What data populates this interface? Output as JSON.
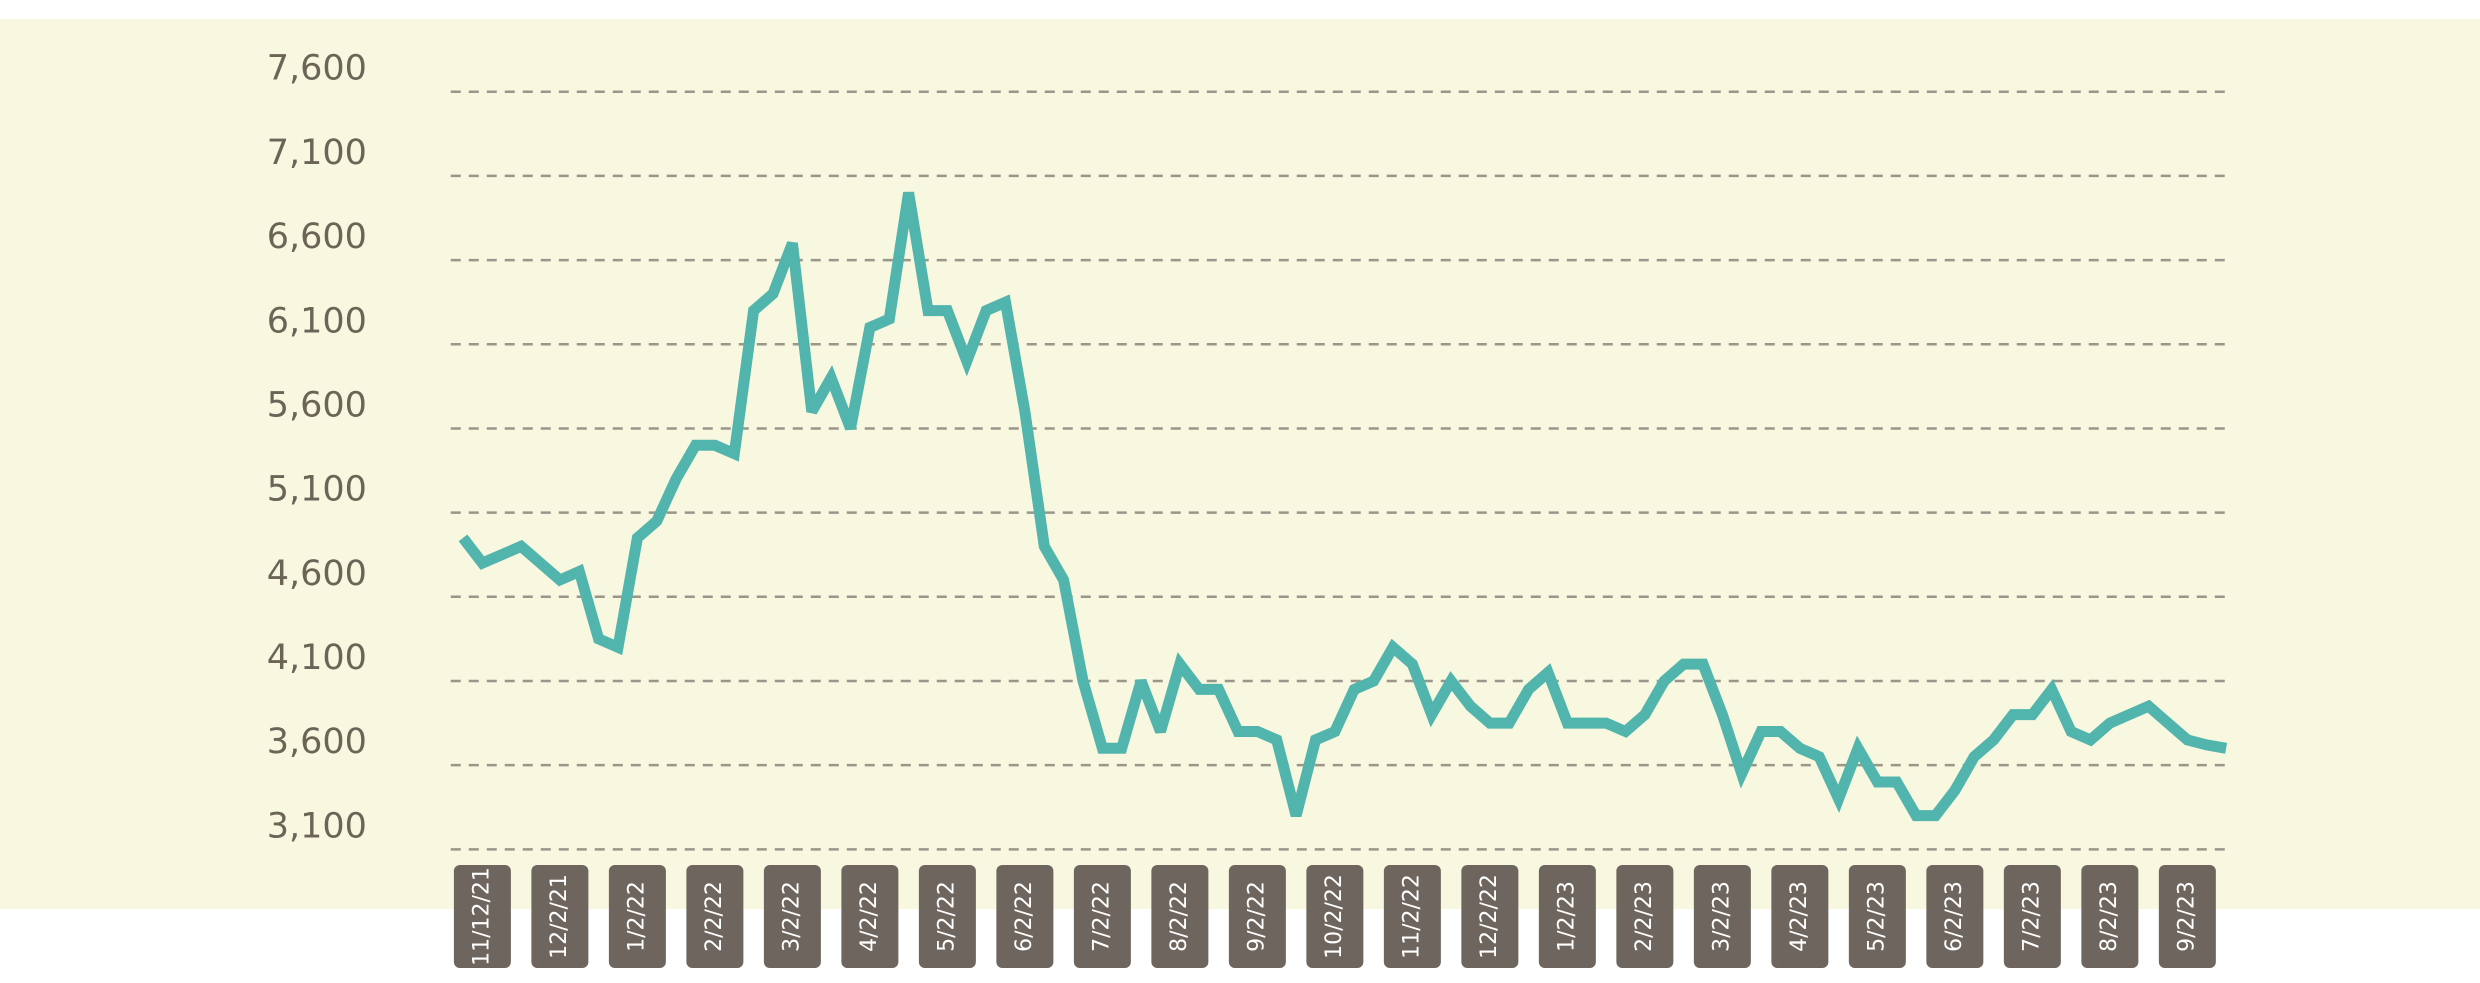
{
  "chart_data": {
    "type": "line",
    "ylim": [
      3100,
      7600
    ],
    "yticks": [
      {
        "value": 3100,
        "label": "3,100"
      },
      {
        "value": 3600,
        "label": "3,600"
      },
      {
        "value": 4100,
        "label": "4,100"
      },
      {
        "value": 4600,
        "label": "4,600"
      },
      {
        "value": 5100,
        "label": "5,100"
      },
      {
        "value": 5600,
        "label": "5,600"
      },
      {
        "value": 6100,
        "label": "6,100"
      },
      {
        "value": 6600,
        "label": "6,600"
      },
      {
        "value": 7100,
        "label": "7,100"
      },
      {
        "value": 7600,
        "label": "7,600"
      }
    ],
    "grid": true,
    "categories": [
      null,
      "11/12/21",
      null,
      null,
      null,
      "12/2/21",
      null,
      null,
      null,
      "1/2/22",
      null,
      null,
      null,
      "2/2/22",
      null,
      null,
      null,
      "3/2/22",
      null,
      null,
      null,
      "4/2/22",
      null,
      null,
      null,
      "5/2/22",
      null,
      null,
      null,
      "6/2/22",
      null,
      null,
      null,
      "7/2/22",
      null,
      null,
      null,
      "8/2/22",
      null,
      null,
      null,
      "9/2/22",
      null,
      null,
      null,
      "10/2/22",
      null,
      null,
      null,
      "11/2/22",
      null,
      null,
      null,
      "12/2/22",
      null,
      null,
      null,
      "1/2/23",
      null,
      null,
      null,
      "2/2/23",
      null,
      null,
      null,
      "3/2/23",
      null,
      null,
      null,
      "4/2/23",
      null,
      null,
      null,
      "5/2/23",
      null,
      null,
      null,
      "6/2/23",
      null,
      null,
      null,
      "7/2/23",
      null,
      null,
      null,
      "8/2/23",
      null,
      null,
      null,
      "9/2/23",
      null,
      null
    ],
    "series": [
      {
        "color": "#52b5ad",
        "values": [
          4950,
          4800,
          4850,
          4900,
          4800,
          4700,
          4750,
          4350,
          4300,
          4950,
          5050,
          5300,
          5500,
          5500,
          5450,
          6300,
          6400,
          6700,
          5700,
          5900,
          5600,
          6200,
          6250,
          7000,
          6300,
          6300,
          6000,
          6300,
          6350,
          5700,
          4900,
          4700,
          4100,
          3700,
          3700,
          4100,
          3800,
          4200,
          4050,
          4050,
          3800,
          3800,
          3750,
          3300,
          3750,
          3800,
          4050,
          4100,
          4300,
          4200,
          3900,
          4100,
          3950,
          3850,
          3850,
          4050,
          4150,
          3850,
          3850,
          3850,
          3800,
          3900,
          4100,
          4200,
          4200,
          3900,
          3550,
          3800,
          3800,
          3700,
          3650,
          3400,
          3700,
          3500,
          3500,
          3300,
          3300,
          3450,
          3650,
          3750,
          3900,
          3900,
          4050,
          3800,
          3750,
          3850,
          3900,
          3950,
          3850,
          3750,
          3720,
          3700
        ]
      }
    ]
  }
}
